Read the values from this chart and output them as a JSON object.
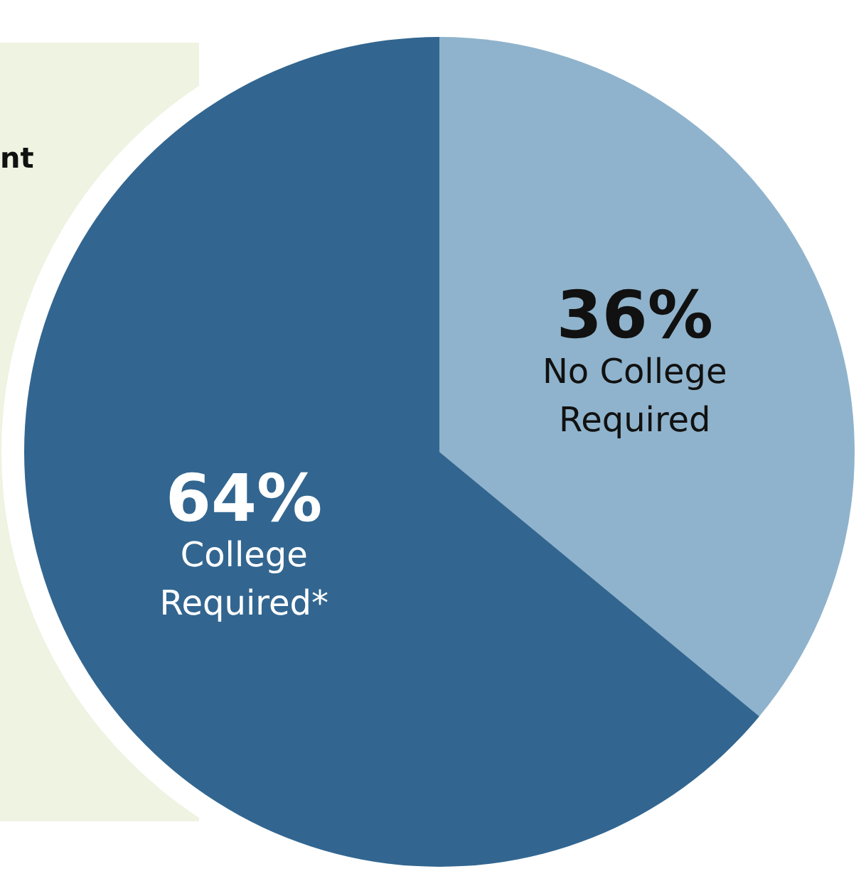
{
  "chart_data": {
    "type": "pie",
    "categories": [
      "No College Required",
      "College Required*"
    ],
    "values": [
      36,
      64
    ],
    "value_labels": [
      "36%",
      "64%"
    ],
    "colors": [
      "#8fb3cc",
      "#326690"
    ],
    "annotations": [
      "nt"
    ]
  }
}
